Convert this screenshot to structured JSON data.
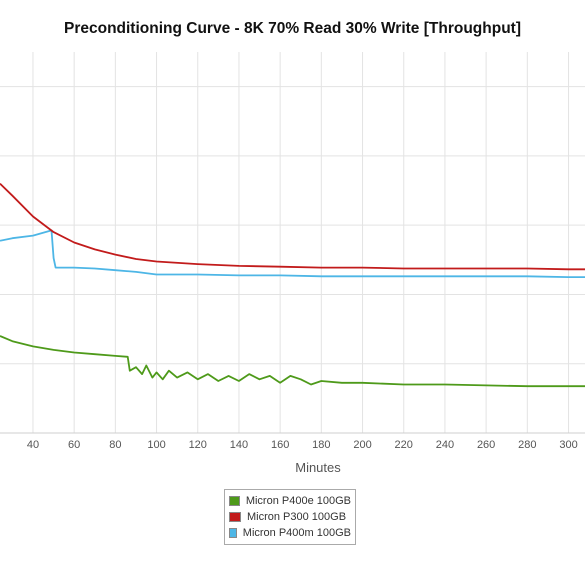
{
  "chart_data": {
    "type": "line",
    "title": "Preconditioning Curve - 8K 70% Read 30% Write [Throughput]",
    "xlabel": "Minutes",
    "ylabel": "",
    "xlim": [
      24,
      308
    ],
    "ylim": [
      0,
      220
    ],
    "x_ticks": [
      40,
      60,
      80,
      100,
      120,
      140,
      160,
      180,
      200,
      220,
      240,
      260,
      280,
      300
    ],
    "y_gridlines": [
      0,
      40,
      80,
      120,
      160,
      200
    ],
    "grid": true,
    "legend_position": "bottom-center",
    "series": [
      {
        "name": "Micron P400e 100GB",
        "color": "#4e9a1a",
        "x": [
          24,
          30,
          40,
          50,
          60,
          70,
          80,
          86,
          87,
          90,
          93,
          95,
          98,
          100,
          103,
          106,
          110,
          115,
          120,
          125,
          130,
          135,
          140,
          145,
          150,
          155,
          160,
          165,
          170,
          175,
          180,
          190,
          200,
          220,
          240,
          260,
          280,
          300,
          308
        ],
        "y": [
          56,
          53,
          50,
          48,
          46.5,
          45.5,
          44.5,
          44,
          36,
          38,
          34,
          39,
          32,
          35,
          31,
          36,
          32,
          35,
          31,
          34,
          30,
          33,
          30,
          34,
          31,
          33,
          29,
          33,
          31,
          28,
          30,
          29,
          29,
          28,
          28,
          27.5,
          27,
          27,
          27
        ]
      },
      {
        "name": "Micron P300 100GB",
        "color": "#c21b1b",
        "x": [
          24,
          30,
          40,
          50,
          60,
          70,
          80,
          90,
          100,
          120,
          140,
          160,
          180,
          200,
          220,
          240,
          260,
          280,
          300,
          308
        ],
        "y": [
          144,
          137,
          125,
          116,
          110,
          106,
          103,
          100.5,
          99,
          97.5,
          96.5,
          96,
          95.5,
          95.5,
          95,
          95,
          95,
          95,
          94.5,
          94.5
        ]
      },
      {
        "name": "Micron P400m 100GB",
        "color": "#4db6e6",
        "x": [
          24,
          30,
          40,
          49,
          50,
          51,
          60,
          70,
          80,
          90,
          100,
          120,
          140,
          160,
          180,
          200,
          220,
          240,
          260,
          280,
          300,
          308
        ],
        "y": [
          111,
          112.5,
          114,
          117,
          101,
          95.5,
          95.5,
          95,
          94,
          93,
          91.5,
          91.5,
          91,
          91,
          90.5,
          90.5,
          90.5,
          90.5,
          90.5,
          90.5,
          90,
          90
        ]
      }
    ]
  }
}
